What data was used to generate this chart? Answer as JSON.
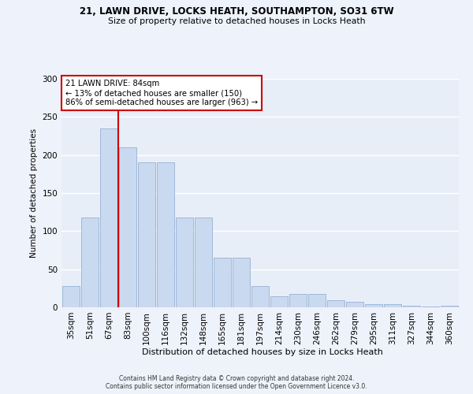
{
  "title_line1": "21, LAWN DRIVE, LOCKS HEATH, SOUTHAMPTON, SO31 6TW",
  "title_line2": "Size of property relative to detached houses in Locks Heath",
  "xlabel": "Distribution of detached houses by size in Locks Heath",
  "ylabel": "Number of detached properties",
  "bar_labels": [
    "35sqm",
    "51sqm",
    "67sqm",
    "83sqm",
    "100sqm",
    "116sqm",
    "132sqm",
    "148sqm",
    "165sqm",
    "181sqm",
    "197sqm",
    "214sqm",
    "230sqm",
    "246sqm",
    "262sqm",
    "279sqm",
    "295sqm",
    "311sqm",
    "327sqm",
    "344sqm",
    "360sqm"
  ],
  "bar_values": [
    28,
    118,
    235,
    210,
    190,
    190,
    118,
    118,
    65,
    65,
    28,
    14,
    18,
    18,
    9,
    7,
    4,
    4,
    2,
    1,
    2
  ],
  "bar_color": "#c9d9f0",
  "bar_edgecolor": "#a0b8d8",
  "bg_color": "#e8eef8",
  "grid_color": "#ffffff",
  "property_label": "21 LAWN DRIVE: 84sqm",
  "annotation_line1": "← 13% of detached houses are smaller (150)",
  "annotation_line2": "86% of semi-detached houses are larger (963) →",
  "vline_color": "#cc0000",
  "annotation_box_color": "#ffffff",
  "annotation_box_edgecolor": "#cc0000",
  "ylim": [
    0,
    300
  ],
  "fig_bg_color": "#eef2fb",
  "footer_line1": "Contains HM Land Registry data © Crown copyright and database right 2024.",
  "footer_line2": "Contains public sector information licensed under the Open Government Licence v3.0."
}
